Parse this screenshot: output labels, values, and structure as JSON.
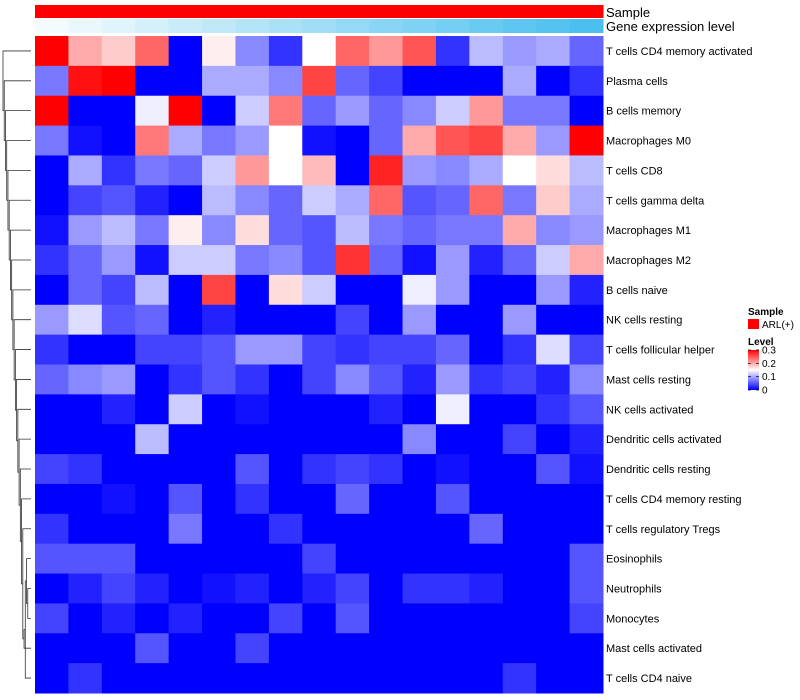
{
  "chart_data": {
    "type": "heatmap",
    "title": "",
    "annotation_labels": {
      "sample": "Sample",
      "gene": "Gene expression level"
    },
    "columns": 17,
    "rows": [
      "T cells CD4 memory activated",
      "Plasma cells",
      "B cells memory",
      "Macrophages M0",
      "T cells CD8",
      "T cells gamma delta",
      "Macrophages M1",
      "Macrophages M2",
      "B cells naive",
      "NK cells resting",
      "T cells follicular helper",
      "Mast cells resting",
      "NK cells activated",
      "Dendritic cells activated",
      "Dendritic cells resting",
      "T cells CD4 memory resting",
      "T cells regulatory  Tregs",
      "Eosinophils",
      "Neutrophils",
      "Monocytes",
      "Mast cells activated",
      "T cells CD4 naive"
    ],
    "values": [
      [
        0.3,
        0.2,
        0.18,
        0.24,
        0.0,
        0.16,
        0.08,
        0.03,
        0.15,
        0.24,
        0.21,
        0.25,
        0.03,
        0.11,
        0.09,
        0.1,
        0.06
      ],
      [
        0.07,
        0.29,
        0.3,
        0.0,
        0.0,
        0.1,
        0.1,
        0.08,
        0.26,
        0.06,
        0.04,
        0.0,
        0.0,
        0.0,
        0.1,
        0.0,
        0.03
      ],
      [
        0.3,
        0.0,
        0.0,
        0.14,
        0.3,
        0.0,
        0.12,
        0.23,
        0.06,
        0.09,
        0.06,
        0.08,
        0.12,
        0.21,
        0.07,
        0.07,
        0.0
      ],
      [
        0.07,
        0.01,
        0.0,
        0.23,
        0.1,
        0.07,
        0.09,
        0.15,
        0.01,
        0.0,
        0.06,
        0.2,
        0.25,
        0.26,
        0.2,
        0.09,
        0.3
      ],
      [
        0.0,
        0.1,
        0.03,
        0.07,
        0.06,
        0.12,
        0.21,
        0.15,
        0.19,
        0.0,
        0.28,
        0.09,
        0.08,
        0.1,
        0.15,
        0.17,
        0.11
      ],
      [
        0.0,
        0.04,
        0.05,
        0.02,
        0.0,
        0.11,
        0.08,
        0.06,
        0.12,
        0.1,
        0.24,
        0.05,
        0.06,
        0.24,
        0.07,
        0.18,
        0.1
      ],
      [
        0.01,
        0.09,
        0.11,
        0.07,
        0.16,
        0.08,
        0.17,
        0.06,
        0.05,
        0.11,
        0.07,
        0.06,
        0.07,
        0.07,
        0.2,
        0.08,
        0.09
      ],
      [
        0.03,
        0.06,
        0.09,
        0.01,
        0.12,
        0.12,
        0.07,
        0.08,
        0.05,
        0.27,
        0.06,
        0.01,
        0.09,
        0.02,
        0.06,
        0.12,
        0.2
      ],
      [
        0.0,
        0.06,
        0.04,
        0.11,
        0.0,
        0.26,
        0.0,
        0.17,
        0.12,
        0.0,
        0.0,
        0.14,
        0.09,
        0.0,
        0.0,
        0.09,
        0.02
      ],
      [
        0.09,
        0.13,
        0.05,
        0.06,
        0.0,
        0.02,
        0.0,
        0.0,
        0.0,
        0.04,
        0.0,
        0.09,
        0.0,
        0.0,
        0.09,
        0.0,
        0.0
      ],
      [
        0.03,
        0.0,
        0.0,
        0.04,
        0.04,
        0.05,
        0.09,
        0.09,
        0.04,
        0.03,
        0.04,
        0.04,
        0.06,
        0.0,
        0.03,
        0.13,
        0.04
      ],
      [
        0.06,
        0.08,
        0.09,
        0.0,
        0.03,
        0.05,
        0.03,
        0.0,
        0.04,
        0.08,
        0.05,
        0.02,
        0.09,
        0.03,
        0.04,
        0.02,
        0.08
      ],
      [
        0.0,
        0.0,
        0.02,
        0.0,
        0.12,
        0.0,
        0.01,
        0.0,
        0.0,
        0.0,
        0.02,
        0.0,
        0.14,
        0.0,
        0.0,
        0.03,
        0.05
      ],
      [
        0.0,
        0.0,
        0.0,
        0.11,
        0.0,
        0.0,
        0.0,
        0.0,
        0.0,
        0.0,
        0.0,
        0.08,
        0.0,
        0.0,
        0.04,
        0.0,
        0.02
      ],
      [
        0.04,
        0.03,
        0.0,
        0.0,
        0.0,
        0.0,
        0.05,
        0.0,
        0.03,
        0.04,
        0.03,
        0.0,
        0.01,
        0.0,
        0.0,
        0.05,
        0.01
      ],
      [
        0.0,
        0.0,
        0.01,
        0.0,
        0.05,
        0.0,
        0.03,
        0.0,
        0.0,
        0.06,
        0.0,
        0.0,
        0.05,
        0.0,
        0.0,
        0.0,
        0.0
      ],
      [
        0.03,
        0.0,
        0.0,
        0.0,
        0.07,
        0.0,
        0.0,
        0.03,
        0.0,
        0.0,
        0.0,
        0.0,
        0.0,
        0.06,
        0.0,
        0.0,
        0.0
      ],
      [
        0.05,
        0.05,
        0.05,
        0.0,
        0.0,
        0.0,
        0.0,
        0.0,
        0.04,
        0.0,
        0.0,
        0.0,
        0.0,
        0.0,
        0.0,
        0.0,
        0.05
      ],
      [
        0.0,
        0.02,
        0.04,
        0.02,
        0.0,
        0.01,
        0.02,
        0.0,
        0.02,
        0.04,
        0.0,
        0.03,
        0.03,
        0.02,
        0.0,
        0.0,
        0.05
      ],
      [
        0.04,
        0.0,
        0.02,
        0.0,
        0.02,
        0.0,
        0.0,
        0.04,
        0.0,
        0.05,
        0.0,
        0.0,
        0.0,
        0.0,
        0.0,
        0.0,
        0.04
      ],
      [
        0.0,
        0.0,
        0.0,
        0.05,
        0.0,
        0.0,
        0.04,
        0.0,
        0.0,
        0.0,
        0.0,
        0.0,
        0.0,
        0.0,
        0.0,
        0.0,
        0.0
      ],
      [
        0.0,
        0.03,
        0.0,
        0.0,
        0.0,
        0.0,
        0.0,
        0.0,
        0.0,
        0.0,
        0.0,
        0.0,
        0.0,
        0.0,
        0.03,
        0.0,
        0.0
      ]
    ],
    "gene_expression": [
      0.0,
      0.06,
      0.12,
      0.19,
      0.25,
      0.31,
      0.38,
      0.44,
      0.5,
      0.56,
      0.63,
      0.69,
      0.75,
      0.81,
      0.88,
      0.94,
      1.0
    ],
    "gene_colors": {
      "low": "#f4fbfe",
      "high": "#4bbfef"
    },
    "sample_color": "#ff0000",
    "scale": {
      "min": 0,
      "mid": 0.15,
      "max": 0.3,
      "colors": [
        "#0000ff",
        "#ffffff",
        "#ff0000"
      ]
    },
    "legend": {
      "sample_title": "Sample",
      "sample_entry": "ARL(+)",
      "level_title": "Level",
      "ticks": [
        {
          "value": 0.3,
          "label": "0.3"
        },
        {
          "value": 0.2,
          "label": "0.2"
        },
        {
          "value": 0.1,
          "label": "0.1"
        },
        {
          "value": 0,
          "label": "0"
        }
      ]
    },
    "row_dendrogram": [
      [
        18,
        19
      ],
      [
        17,
        22
      ],
      [
        21,
        23
      ],
      [
        20,
        24
      ],
      [
        16,
        25
      ],
      [
        15,
        26
      ],
      [
        14,
        27
      ],
      [
        13,
        28
      ],
      [
        12,
        29
      ],
      [
        11,
        30
      ],
      [
        10,
        31
      ],
      [
        9,
        32
      ],
      [
        8,
        33
      ],
      [
        7,
        34
      ],
      [
        6,
        35
      ],
      [
        5,
        36
      ],
      [
        4,
        37
      ],
      [
        3,
        38
      ],
      [
        2,
        39
      ],
      [
        1,
        40
      ],
      [
        0,
        41
      ]
    ]
  }
}
